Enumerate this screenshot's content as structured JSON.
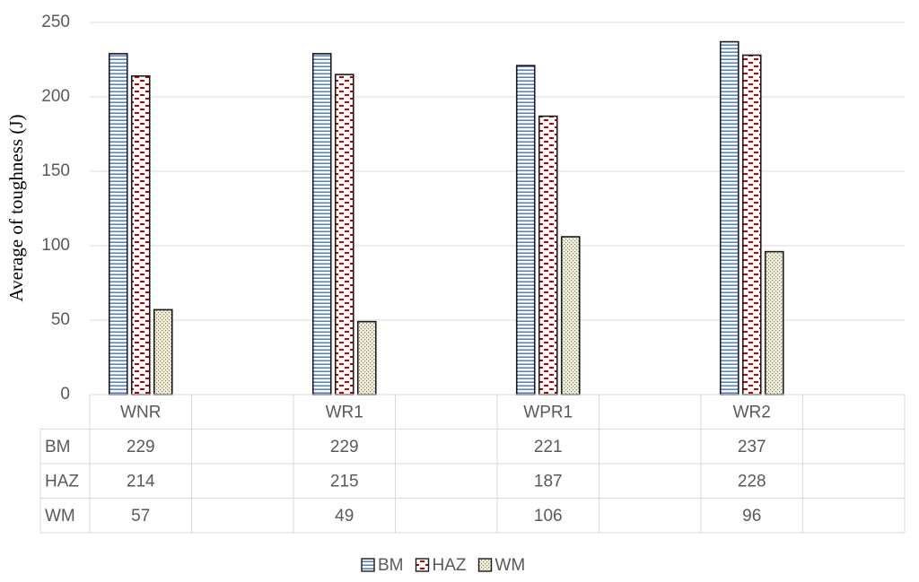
{
  "chart_data": {
    "type": "bar",
    "y_label": "Average of toughness (J)",
    "categories": [
      "WNR",
      null,
      "WR1",
      null,
      "WPR1",
      null,
      "WR2",
      null
    ],
    "series": [
      {
        "name": "BM",
        "color": "#4472c4",
        "values": [
          229,
          null,
          229,
          null,
          221,
          null,
          237,
          null
        ]
      },
      {
        "name": "HAZ",
        "color": "#c00000",
        "values": [
          214,
          null,
          215,
          null,
          187,
          null,
          228,
          null
        ]
      },
      {
        "name": "WM",
        "color": "#7f7f5f",
        "values": [
          57,
          null,
          49,
          null,
          106,
          null,
          96,
          null
        ]
      }
    ],
    "ylim": [
      0,
      250
    ],
    "yticks": [
      0,
      50,
      100,
      150,
      200,
      250
    ],
    "grid": true
  }
}
